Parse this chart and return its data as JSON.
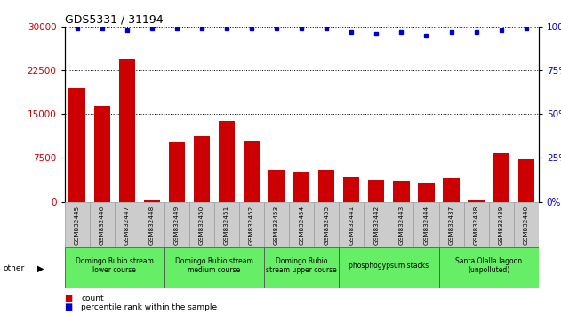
{
  "title": "GDS5331 / 31194",
  "samples": [
    "GSM832445",
    "GSM832446",
    "GSM832447",
    "GSM832448",
    "GSM832449",
    "GSM832450",
    "GSM832451",
    "GSM832452",
    "GSM832453",
    "GSM832454",
    "GSM832455",
    "GSM832441",
    "GSM832442",
    "GSM832443",
    "GSM832444",
    "GSM832437",
    "GSM832438",
    "GSM832439",
    "GSM832440"
  ],
  "counts": [
    19500,
    16500,
    24500,
    200,
    10200,
    11200,
    13800,
    10500,
    5500,
    5100,
    5500,
    4200,
    3800,
    3600,
    3100,
    4100,
    200,
    8300,
    7300
  ],
  "percentile": [
    99,
    99,
    98,
    99,
    99,
    99,
    99,
    99,
    99,
    99,
    99,
    97,
    96,
    97,
    95,
    97,
    97,
    98,
    99
  ],
  "ylim_left": [
    0,
    30000
  ],
  "ylim_right": [
    0,
    100
  ],
  "yticks_left": [
    0,
    7500,
    15000,
    22500,
    30000
  ],
  "yticks_right": [
    0,
    25,
    50,
    75,
    100
  ],
  "bar_color": "#cc0000",
  "dot_color": "#0000cc",
  "groups": [
    {
      "label": "Domingo Rubio stream\nlower course",
      "start": 0,
      "end": 3,
      "color": "#66ee66"
    },
    {
      "label": "Domingo Rubio stream\nmedium course",
      "start": 4,
      "end": 7,
      "color": "#66ee66"
    },
    {
      "label": "Domingo Rubio\nstream upper course",
      "start": 8,
      "end": 10,
      "color": "#66ee66"
    },
    {
      "label": "phosphogypsum stacks",
      "start": 11,
      "end": 14,
      "color": "#66ee66"
    },
    {
      "label": "Santa Olalla lagoon\n(unpolluted)",
      "start": 15,
      "end": 18,
      "color": "#66ee66"
    }
  ],
  "legend_count_label": "count",
  "legend_percentile_label": "percentile rank within the sample",
  "other_label": "other",
  "tick_label_bg": "#cccccc",
  "group_border_color": "#ffffff",
  "group_text_color": "#000000"
}
